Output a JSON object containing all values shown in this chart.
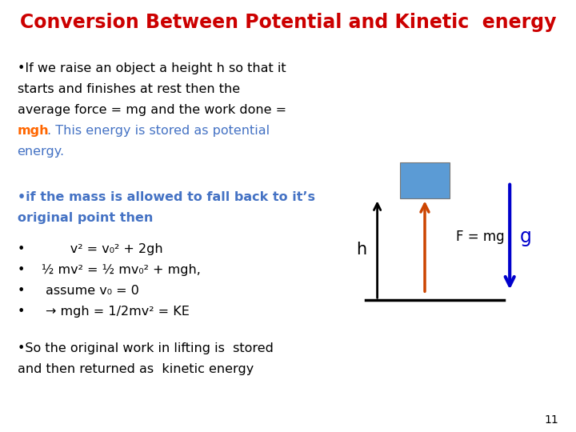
{
  "title": "Conversion Between Potential and Kinetic  energy",
  "title_color": "#CC0000",
  "title_fontsize": 17,
  "background_color": "#FFFFFF",
  "slide_number": "11",
  "text_color_black": "#000000",
  "text_color_blue": "#4472C4",
  "text_color_orange": "#FF6600",
  "body_fontsize": 11.5,
  "bullet_fontsize": 11.5,
  "diagram_box_color": "#5B9BD5",
  "diagram_arrow_up_color": "#CC4400",
  "diagram_arrow_down_color": "#0000CC",
  "diagram_h_label": "h",
  "diagram_fmg_label": "F = mg",
  "diagram_g_label": "g",
  "lh": 0.048
}
